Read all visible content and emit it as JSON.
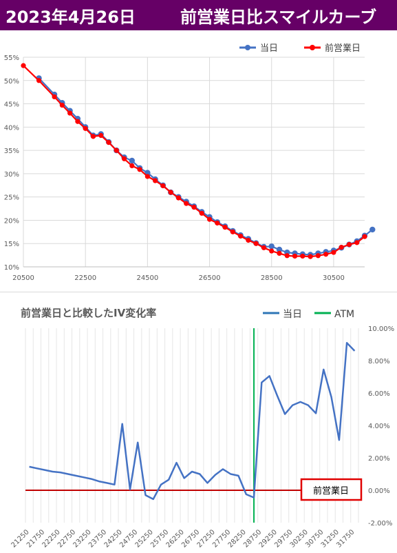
{
  "header": {
    "date": "2023年4月26日",
    "title": "前営業日比スマイルカーブ",
    "bg_color": "#660066"
  },
  "chart_data": [
    {
      "type": "line",
      "title": "",
      "legend_position": "top-right",
      "grid": true,
      "xlim": [
        20500,
        31500
      ],
      "ylim": [
        10,
        55
      ],
      "y_ticks": [
        "10%",
        "15%",
        "20%",
        "25%",
        "30%",
        "35%",
        "40%",
        "45%",
        "50%",
        "55%"
      ],
      "x_ticks": [
        "20500",
        "22500",
        "24500",
        "26500",
        "28500",
        "30500"
      ],
      "series": [
        {
          "name": "当日",
          "color": "#4472c4",
          "points": [
            [
              21000,
              50.5
            ],
            [
              21500,
              47.0
            ],
            [
              21750,
              45.2
            ],
            [
              22000,
              43.5
            ],
            [
              22250,
              41.8
            ],
            [
              22500,
              40.0
            ],
            [
              22750,
              38.2
            ],
            [
              23000,
              38.5
            ],
            [
              23250,
              36.8
            ],
            [
              23500,
              35.0
            ],
            [
              23750,
              33.5
            ],
            [
              24000,
              32.8
            ],
            [
              24250,
              31.2
            ],
            [
              24500,
              30.2
            ],
            [
              24750,
              28.8
            ],
            [
              25000,
              27.5
            ],
            [
              25250,
              26.0
            ],
            [
              25500,
              25.0
            ],
            [
              25750,
              24.0
            ],
            [
              26000,
              23.0
            ],
            [
              26250,
              21.8
            ],
            [
              26500,
              20.7
            ],
            [
              26750,
              19.6
            ],
            [
              27000,
              18.7
            ],
            [
              27250,
              17.7
            ],
            [
              27500,
              16.8
            ],
            [
              27750,
              16.0
            ],
            [
              28000,
              15.1
            ],
            [
              28250,
              14.3
            ],
            [
              28500,
              14.4
            ],
            [
              28750,
              13.7
            ],
            [
              29000,
              13.1
            ],
            [
              29250,
              12.9
            ],
            [
              29500,
              12.7
            ],
            [
              29750,
              12.6
            ],
            [
              30000,
              12.9
            ],
            [
              30250,
              13.2
            ],
            [
              30500,
              13.5
            ],
            [
              30750,
              14.1
            ],
            [
              31000,
              14.8
            ],
            [
              31250,
              15.5
            ],
            [
              31500,
              16.7
            ],
            [
              31750,
              18.0
            ]
          ]
        },
        {
          "name": "前営業日",
          "color": "#ff0000",
          "points": [
            [
              20500,
              53.2
            ],
            [
              21000,
              50.0
            ],
            [
              21500,
              46.5
            ],
            [
              21750,
              44.7
            ],
            [
              22000,
              43.0
            ],
            [
              22250,
              41.2
            ],
            [
              22500,
              39.7
            ],
            [
              22750,
              38.0
            ],
            [
              23000,
              38.2
            ],
            [
              23250,
              36.7
            ],
            [
              23500,
              35.0
            ],
            [
              23750,
              33.2
            ],
            [
              24000,
              31.7
            ],
            [
              24250,
              30.9
            ],
            [
              24500,
              29.4
            ],
            [
              24750,
              28.5
            ],
            [
              25000,
              27.4
            ],
            [
              25250,
              26.0
            ],
            [
              25500,
              24.8
            ],
            [
              25750,
              23.6
            ],
            [
              26000,
              22.8
            ],
            [
              26250,
              21.5
            ],
            [
              26500,
              20.2
            ],
            [
              26750,
              19.4
            ],
            [
              27000,
              18.5
            ],
            [
              27250,
              17.5
            ],
            [
              27500,
              16.6
            ],
            [
              27750,
              15.7
            ],
            [
              28000,
              15.0
            ],
            [
              28250,
              14.1
            ],
            [
              28500,
              13.4
            ],
            [
              28750,
              12.9
            ],
            [
              29000,
              12.4
            ],
            [
              29250,
              12.3
            ],
            [
              29500,
              12.3
            ],
            [
              29750,
              12.2
            ],
            [
              30000,
              12.4
            ],
            [
              30250,
              12.7
            ],
            [
              30500,
              13.1
            ],
            [
              30750,
              14.2
            ],
            [
              31000,
              14.8
            ],
            [
              31250,
              15.2
            ],
            [
              31500,
              16.5
            ]
          ]
        }
      ]
    },
    {
      "type": "line",
      "title": "前営業日と比較したIV変化率",
      "legend_position": "top-right",
      "grid": true,
      "y_axis_side": "right",
      "ylim": [
        -2,
        10
      ],
      "y_ticks": [
        "10.00%",
        "8.00%",
        "6.00%",
        "4.00%",
        "2.00%",
        "0.00%",
        "-2.00%"
      ],
      "categories": [
        "21250",
        "21500",
        "21750",
        "22000",
        "22250",
        "22500",
        "22750",
        "23000",
        "23250",
        "23500",
        "23750",
        "24000",
        "24250",
        "24500",
        "24750",
        "25000",
        "25250",
        "25500",
        "25750",
        "26000",
        "26250",
        "26500",
        "26750",
        "27000",
        "27250",
        "27500",
        "27750",
        "28000",
        "28250",
        "28500",
        "28750",
        "29000",
        "29250",
        "29500",
        "29750",
        "30000",
        "30250",
        "30500",
        "30750",
        "31000",
        "31250",
        "31500",
        "31750"
      ],
      "x_tick_labels": [
        "21250",
        "21750",
        "22250",
        "22750",
        "23250",
        "23750",
        "24250",
        "24750",
        "25250",
        "25750",
        "26250",
        "26750",
        "27250",
        "27750",
        "28250",
        "28750",
        "29250",
        "29750",
        "30250",
        "30750",
        "31250",
        "31750"
      ],
      "series": [
        {
          "name": "当日",
          "color": "#4472c4",
          "values": [
            1.45,
            1.35,
            1.25,
            1.15,
            1.1,
            1.0,
            0.9,
            0.8,
            0.7,
            0.55,
            0.45,
            0.35,
            4.1,
            0.05,
            2.95,
            -0.3,
            -0.55,
            0.35,
            0.65,
            1.7,
            0.75,
            1.15,
            1.0,
            0.45,
            0.95,
            1.3,
            1.0,
            0.9,
            -0.25,
            -0.45,
            6.65,
            7.05,
            5.85,
            4.7,
            5.25,
            5.45,
            5.25,
            4.75,
            7.45,
            5.75,
            3.1,
            9.1,
            8.6
          ]
        }
      ],
      "atm": {
        "name": "ATM",
        "color": "#00b050",
        "category": "28500"
      },
      "zero_line": {
        "label": "前営業日",
        "color": "#c00000"
      }
    }
  ]
}
